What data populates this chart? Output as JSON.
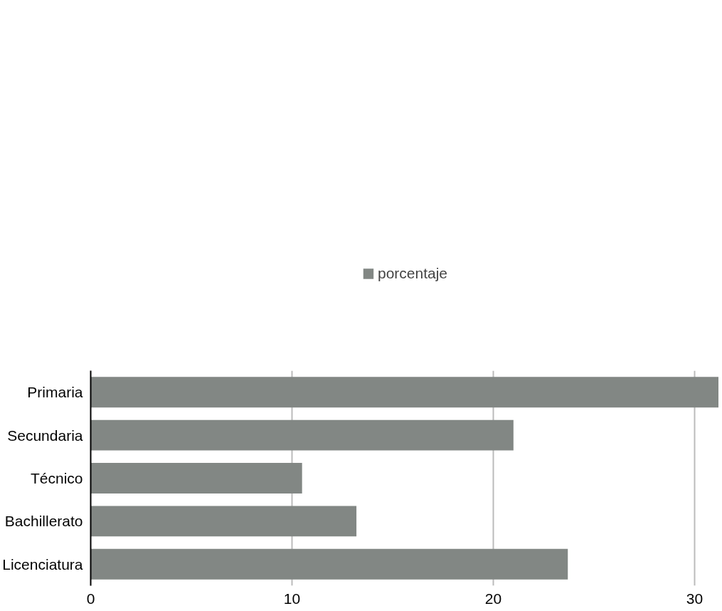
{
  "chart_data": {
    "type": "bar",
    "orientation": "horizontal",
    "categories": [
      "Primaria",
      "Secundaria",
      "Técnico",
      "Bachillerato",
      "Licenciatura"
    ],
    "series": [
      {
        "name": "porcentaje",
        "color": "#828784",
        "values": [
          31.2,
          21.0,
          10.5,
          13.2,
          23.7
        ]
      }
    ],
    "xlim": [
      0,
      31.2
    ],
    "xticks": [
      0,
      10,
      20,
      30
    ],
    "grid": "x",
    "legend": "top"
  }
}
